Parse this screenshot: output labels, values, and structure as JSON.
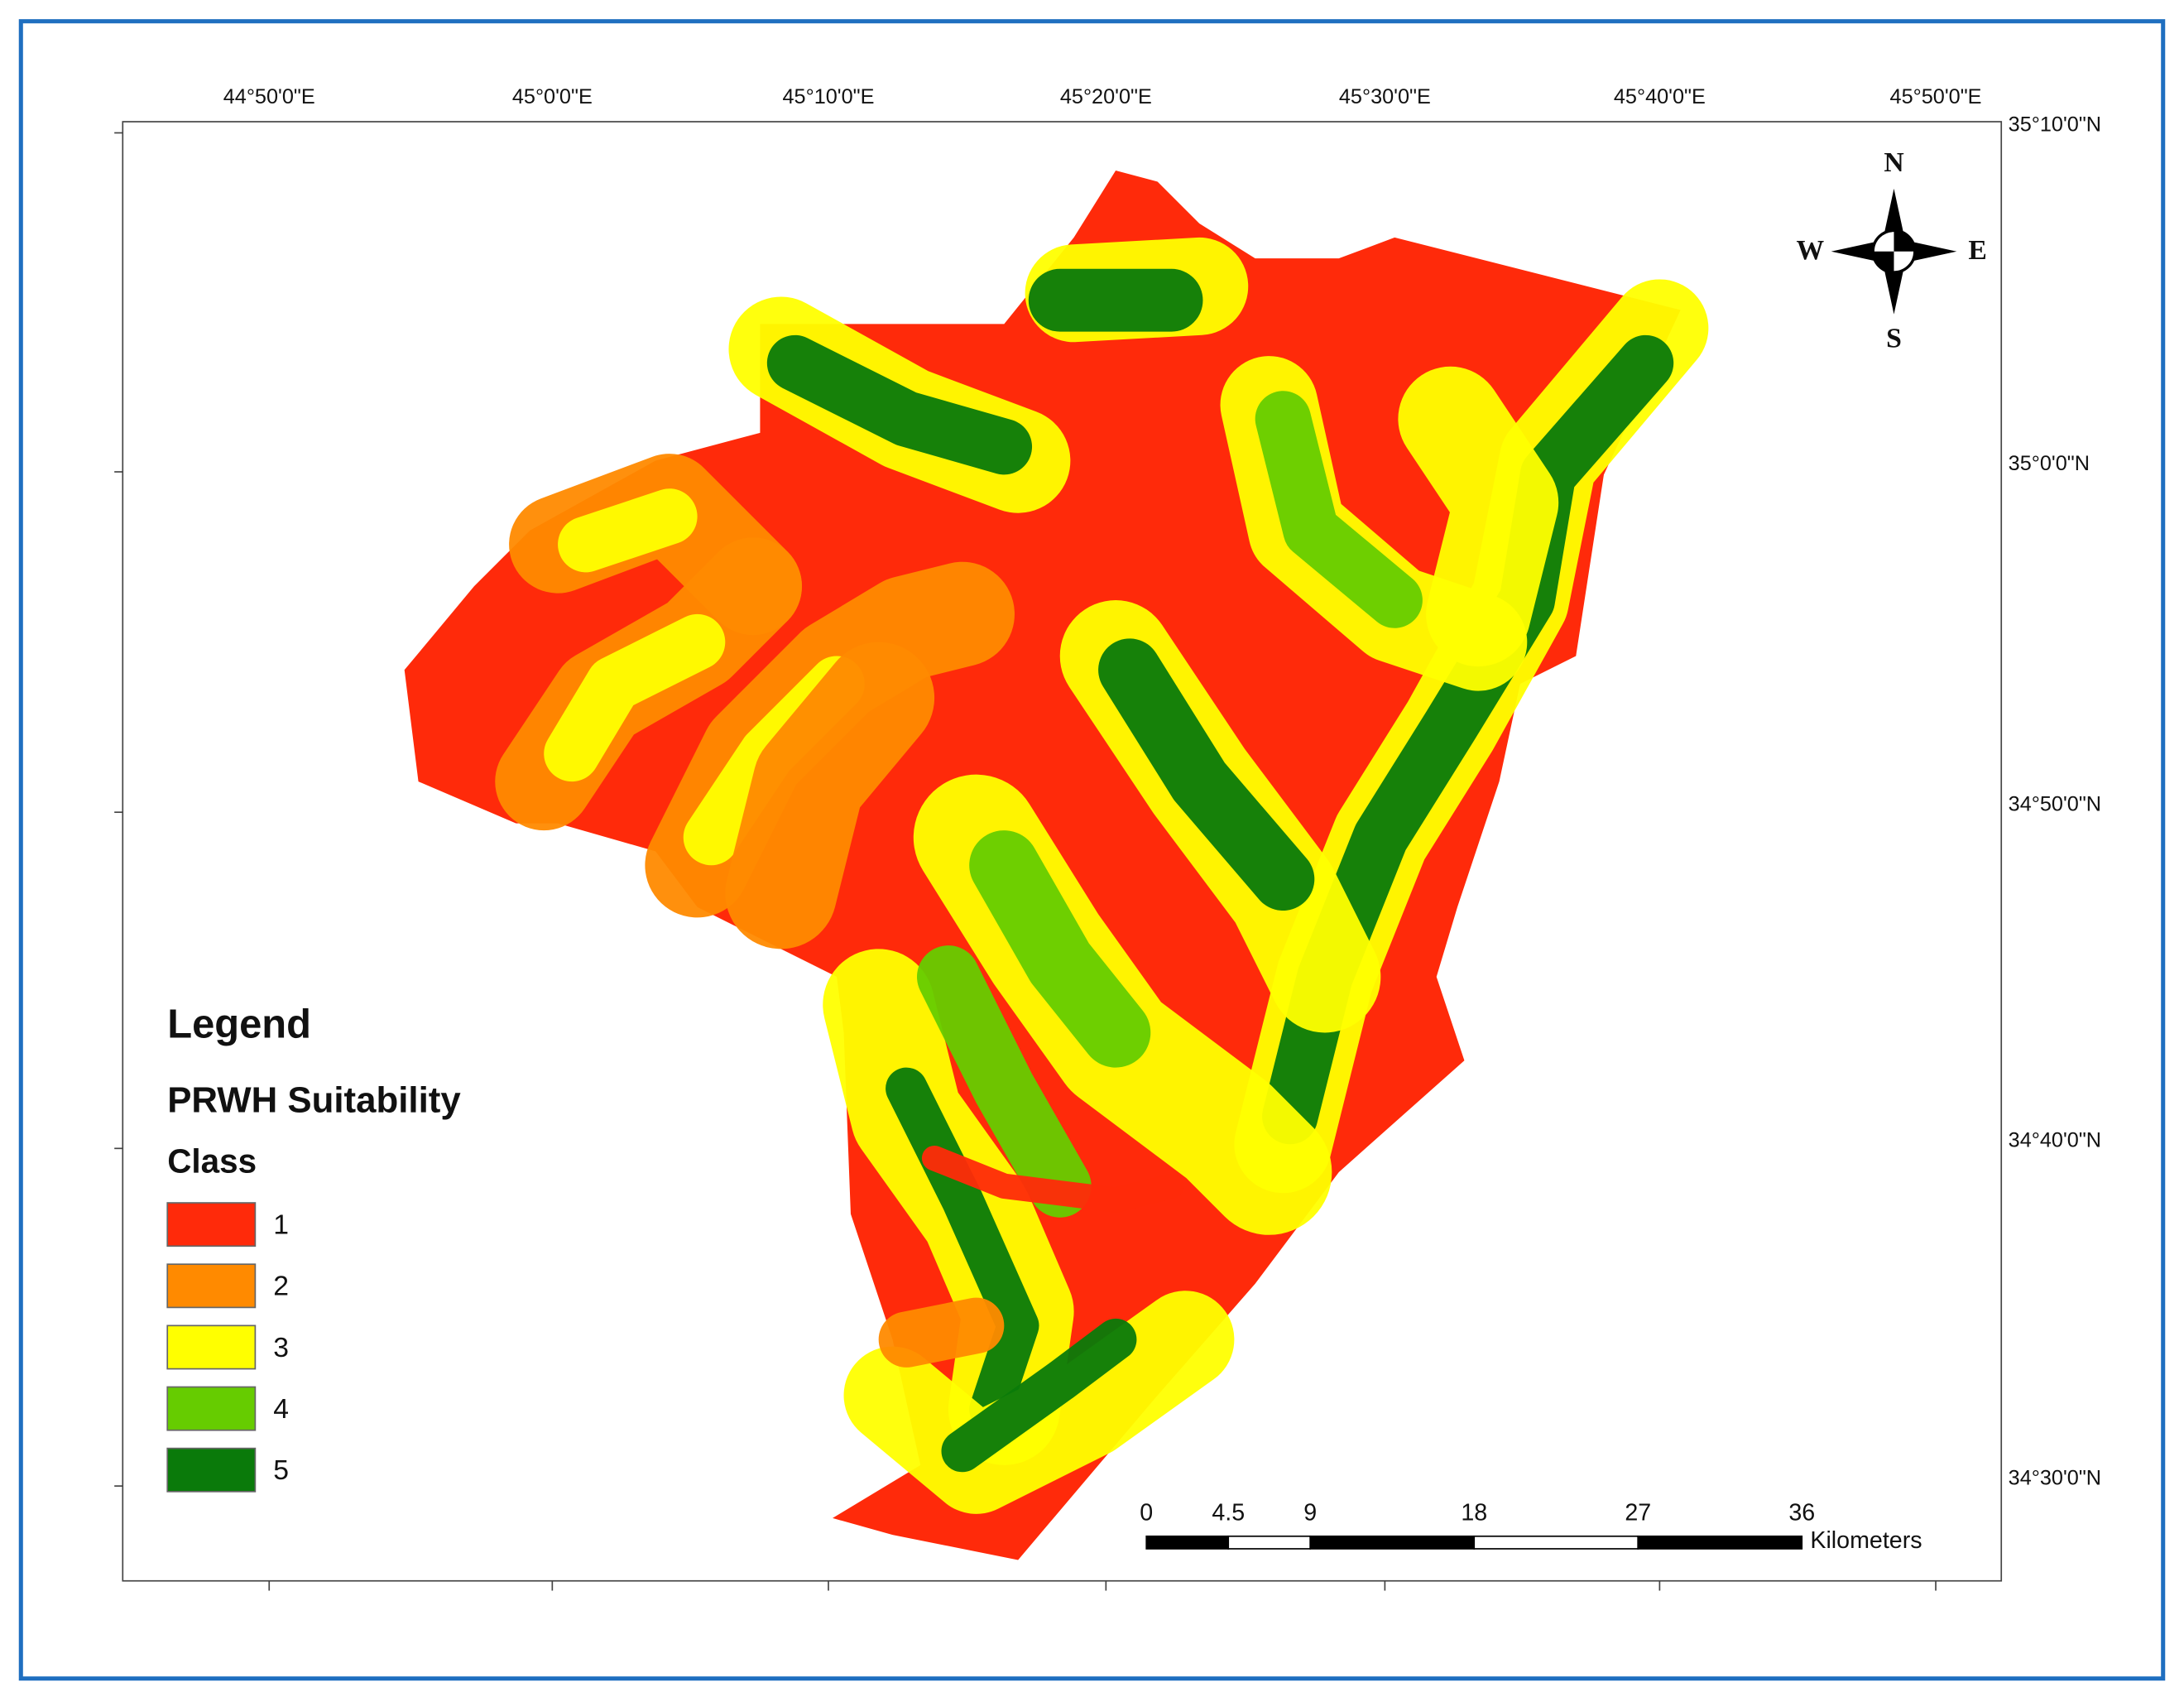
{
  "map": {
    "top_labels": [
      "44°50'0\"E",
      "45°0'0\"E",
      "45°10'0\"E",
      "45°20'0\"E",
      "45°30'0\"E",
      "45°40'0\"E",
      "45°50'0\"E"
    ],
    "right_labels": [
      "35°10'0\"N",
      "35°0'0\"N",
      "34°50'0\"N",
      "34°40'0\"N",
      "34°30'0\"N"
    ],
    "legend": {
      "title": "Legend",
      "subtitle": "PRWH Suitability",
      "class_label": "Class",
      "classes": [
        {
          "label": "1",
          "color": "#ff2a0a"
        },
        {
          "label": "2",
          "color": "#ff8a00"
        },
        {
          "label": "3",
          "color": "#ffff00"
        },
        {
          "label": "4",
          "color": "#66cc00"
        },
        {
          "label": "5",
          "color": "#0a7a0a"
        }
      ]
    },
    "compass": {
      "n": "N",
      "s": "S",
      "e": "E",
      "w": "W"
    },
    "scale_bar": {
      "ticks": [
        0,
        4.5,
        9,
        18,
        27,
        36
      ],
      "unit": "Kilometers"
    }
  }
}
